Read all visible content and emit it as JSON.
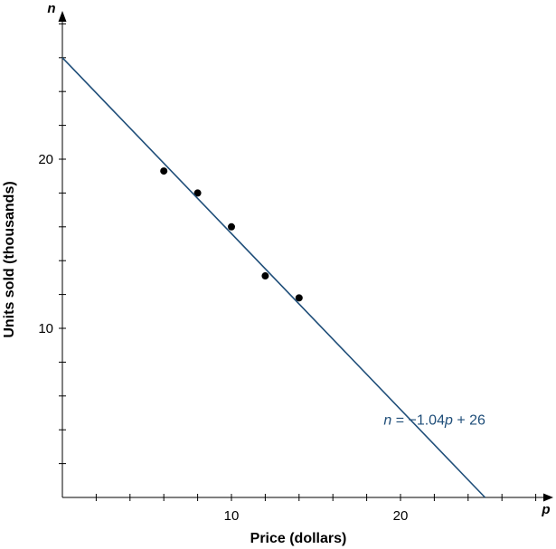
{
  "chart_data": {
    "type": "scatter",
    "xlabel": "Price (dollars)",
    "ylabel": "Units sold (thousands)",
    "x_var": "p",
    "y_var": "n",
    "xlim": [
      0,
      29
    ],
    "ylim": [
      0,
      29
    ],
    "x_tick_labels": [
      10,
      20
    ],
    "y_tick_labels": [
      10,
      20
    ],
    "x_minor_step": 2,
    "y_minor_step": 2,
    "series": [
      {
        "points": [
          {
            "x": 6,
            "y": 19.3
          },
          {
            "x": 8,
            "y": 18.0
          },
          {
            "x": 10,
            "y": 16.0
          },
          {
            "x": 12,
            "y": 13.1
          },
          {
            "x": 14,
            "y": 11.8
          }
        ]
      }
    ],
    "fit_line": {
      "slope": -1.04,
      "intercept": 26,
      "color": "#1f4e79",
      "equation_parts": {
        "lhs": "n",
        "eq": " = −1.04",
        "var": "p",
        "rest": " + 26"
      },
      "label_at_x": 20.5
    },
    "grid": false
  }
}
